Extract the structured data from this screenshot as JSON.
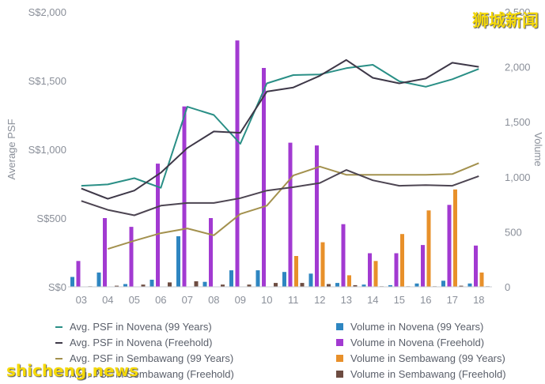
{
  "chart_data": {
    "type": "bar",
    "categories": [
      "03",
      "04",
      "05",
      "06",
      "07",
      "08",
      "09",
      "10",
      "11",
      "12",
      "13",
      "14",
      "15",
      "16",
      "17",
      "18"
    ],
    "ylabel": "Average PSF",
    "y2label": "Volume",
    "left_ticks": [
      "S$0",
      "S$500",
      "S$1,000",
      "S$1,500",
      "S$2,000"
    ],
    "right_ticks": [
      "0",
      "500",
      "1,000",
      "1,500",
      "2,000",
      "2,500"
    ],
    "ylim": [
      0,
      2000
    ],
    "y2lim": [
      0,
      2500
    ],
    "grid": false,
    "legend_position": "bottom",
    "bar_series": [
      {
        "name": "Volume in Novena (99 Years)",
        "color": "#2e86c1",
        "values": [
          90,
          130,
          25,
          65,
          460,
          45,
          150,
          150,
          135,
          120,
          35,
          20,
          15,
          30,
          55,
          30
        ]
      },
      {
        "name": "Volume in Novena (Freehold)",
        "color": "#a23ad1",
        "values": [
          235,
          625,
          545,
          1120,
          1640,
          625,
          2240,
          1990,
          1310,
          1285,
          570,
          305,
          305,
          380,
          745,
          375
        ]
      },
      {
        "name": "Volume in Sembawang (99 Years)",
        "color": "#e8902a",
        "values": [
          0,
          0,
          0,
          0,
          0,
          0,
          0,
          0,
          280,
          405,
          105,
          235,
          480,
          695,
          885,
          130
        ]
      },
      {
        "name": "Volume in Sembawang (Freehold)",
        "color": "#6d4c41",
        "values": [
          5,
          10,
          20,
          40,
          50,
          20,
          20,
          35,
          35,
          25,
          15,
          5,
          5,
          5,
          10,
          5
        ]
      }
    ],
    "line_series": [
      {
        "name": "Avg. PSF in Novena (99 Years)",
        "color": "#2a8f86",
        "values": [
          735,
          745,
          790,
          720,
          1310,
          1250,
          1040,
          1480,
          1540,
          1545,
          1590,
          1615,
          1495,
          1455,
          1510,
          1585
        ]
      },
      {
        "name": "Avg. PSF in Novena (Freehold)",
        "color": "#3e3848",
        "values": [
          715,
          640,
          700,
          830,
          1010,
          1130,
          1120,
          1420,
          1450,
          1535,
          1650,
          1520,
          1480,
          1515,
          1630,
          1600
        ]
      },
      {
        "name": "Avg. PSF in Sembawang (99 Years)",
        "color": "#a3914e",
        "values": [
          null,
          275,
          335,
          390,
          425,
          375,
          530,
          590,
          810,
          875,
          815,
          815,
          815,
          815,
          820,
          900
        ]
      },
      {
        "name": "Avg. PSF in Sembawang (Freehold)",
        "color": "#4d4552",
        "values": [
          625,
          560,
          520,
          590,
          610,
          610,
          645,
          700,
          725,
          755,
          850,
          775,
          735,
          740,
          735,
          805
        ]
      }
    ]
  },
  "legend": [
    {
      "label": "Avg. PSF in Novena (99 Years)",
      "kind": "line",
      "color": "#2a8f86"
    },
    {
      "label": "Volume in Novena (99 Years)",
      "kind": "box",
      "color": "#2e86c1"
    },
    {
      "label": "Avg. PSF in Novena (Freehold)",
      "kind": "line",
      "color": "#3e3848"
    },
    {
      "label": "Volume in Novena (Freehold)",
      "kind": "box",
      "color": "#a23ad1"
    },
    {
      "label": "Avg. PSF in Sembawang (99 Years)",
      "kind": "line",
      "color": "#a3914e"
    },
    {
      "label": "Volume in Sembawang (99 Years)",
      "kind": "box",
      "color": "#e8902a"
    },
    {
      "label": "Avg. PSF in Sembawang (Freehold)",
      "kind": "line",
      "color": "#4d4552"
    },
    {
      "label": "Volume in Sembawang (Freehold)",
      "kind": "box",
      "color": "#6d4c41"
    }
  ],
  "watermarks": {
    "top_right": "狮城新闻",
    "bottom_left": "shicheng.news"
  }
}
